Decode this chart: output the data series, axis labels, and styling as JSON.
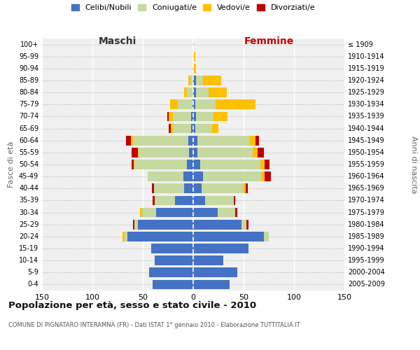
{
  "age_groups": [
    "0-4",
    "5-9",
    "10-14",
    "15-19",
    "20-24",
    "25-29",
    "30-34",
    "35-39",
    "40-44",
    "45-49",
    "50-54",
    "55-59",
    "60-64",
    "65-69",
    "70-74",
    "75-79",
    "80-84",
    "85-89",
    "90-94",
    "95-99",
    "100+"
  ],
  "birth_years": [
    "2005-2009",
    "2000-2004",
    "1995-1999",
    "1990-1994",
    "1985-1989",
    "1980-1984",
    "1975-1979",
    "1970-1974",
    "1965-1969",
    "1960-1964",
    "1955-1959",
    "1950-1954",
    "1945-1949",
    "1940-1944",
    "1935-1939",
    "1930-1934",
    "1925-1929",
    "1920-1924",
    "1915-1919",
    "1910-1914",
    "≤ 1909"
  ],
  "maschi_celibi": [
    40,
    44,
    38,
    42,
    65,
    55,
    37,
    18,
    9,
    10,
    6,
    4,
    5,
    2,
    2,
    1,
    0,
    0,
    0,
    0,
    0
  ],
  "maschi_coniugati": [
    0,
    0,
    0,
    0,
    3,
    3,
    14,
    20,
    30,
    35,
    52,
    50,
    55,
    18,
    18,
    14,
    6,
    3,
    1,
    0,
    0
  ],
  "maschi_vedovi": [
    0,
    0,
    0,
    0,
    2,
    0,
    2,
    0,
    0,
    0,
    1,
    1,
    2,
    2,
    4,
    8,
    3,
    2,
    0,
    0,
    0
  ],
  "maschi_divorziati": [
    0,
    0,
    0,
    0,
    0,
    2,
    0,
    2,
    2,
    0,
    2,
    6,
    5,
    2,
    2,
    0,
    0,
    0,
    0,
    0,
    0
  ],
  "femmine_celibi": [
    36,
    44,
    30,
    55,
    70,
    48,
    24,
    12,
    8,
    10,
    7,
    4,
    4,
    2,
    3,
    2,
    3,
    3,
    0,
    0,
    0
  ],
  "femmine_coniugati": [
    0,
    0,
    0,
    0,
    5,
    5,
    18,
    28,
    42,
    58,
    60,
    55,
    52,
    17,
    17,
    20,
    12,
    7,
    1,
    1,
    0
  ],
  "femmine_vedovi": [
    0,
    0,
    0,
    0,
    0,
    0,
    0,
    0,
    2,
    3,
    4,
    5,
    6,
    6,
    14,
    40,
    18,
    18,
    2,
    1,
    1
  ],
  "femmine_divorziati": [
    0,
    0,
    0,
    0,
    0,
    2,
    2,
    2,
    2,
    6,
    5,
    6,
    3,
    0,
    0,
    0,
    0,
    0,
    0,
    0,
    0
  ],
  "colors": {
    "celibi": "#4472C4",
    "coniugati": "#c5d9a0",
    "vedovi": "#ffc000",
    "divorziati": "#c00000"
  },
  "xlim": 150,
  "title": "Popolazione per età, sesso e stato civile - 2010",
  "subtitle": "COMUNE DI PIGNATARO INTERAMNA (FR) - Dati ISTAT 1° gennaio 2010 - Elaborazione TUTTITALIA.IT",
  "xlabel_left": "Maschi",
  "xlabel_right": "Femmine",
  "ylabel_left": "Fasce di età",
  "ylabel_right": "Anni di nascita",
  "legend_labels": [
    "Celibi/Nubili",
    "Coniugati/e",
    "Vedovi/e",
    "Divorziati/e"
  ],
  "bg_color": "#ffffff",
  "plot_bg_color": "#f0f0f0"
}
